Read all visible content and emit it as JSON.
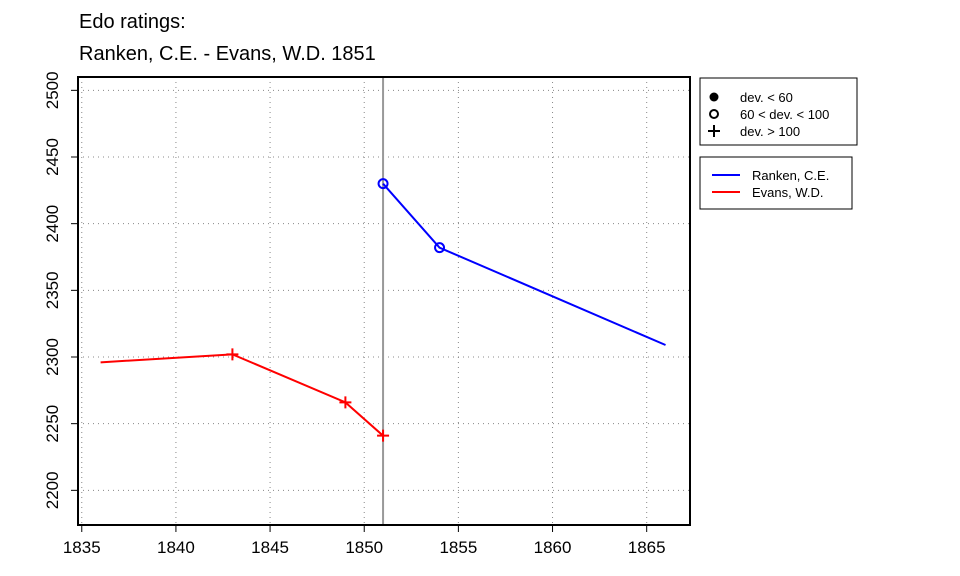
{
  "chart_data": {
    "type": "line",
    "title": "Edo ratings:",
    "subtitle": "Ranken, C.E. - Evans, W.D. 1851",
    "xlabel": "",
    "ylabel": "",
    "xlim": [
      1834.8,
      1867.3
    ],
    "ylim": [
      2174,
      2510
    ],
    "xticks": [
      1835,
      1840,
      1845,
      1850,
      1855,
      1860,
      1865
    ],
    "yticks": [
      2200,
      2250,
      2300,
      2350,
      2400,
      2450,
      2500
    ],
    "grid": true,
    "vline": 1851,
    "series": [
      {
        "name": "Ranken, C.E.",
        "color": "#0000ff",
        "x": [
          1851,
          1854,
          1866
        ],
        "y": [
          2430,
          2382,
          2309
        ],
        "markers": [
          "circle-open",
          "circle-open",
          null
        ]
      },
      {
        "name": "Evans, W.D.",
        "color": "#ff0000",
        "x": [
          1836,
          1843,
          1849,
          1851
        ],
        "y": [
          2296,
          2302,
          2266,
          2241
        ],
        "markers": [
          null,
          "plus",
          "plus",
          "plus"
        ]
      }
    ],
    "marker_legend": [
      {
        "symbol": "circle-filled",
        "label": "dev. < 60"
      },
      {
        "symbol": "circle-open",
        "label": "60 < dev. < 100"
      },
      {
        "symbol": "plus",
        "label": "dev. > 100"
      }
    ],
    "legend_placement": "right"
  }
}
